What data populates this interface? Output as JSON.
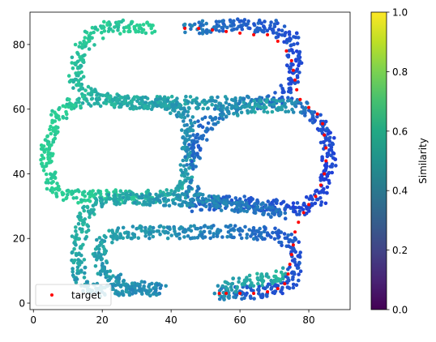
{
  "chart_data": {
    "type": "scatter",
    "xlim": [
      -1,
      92
    ],
    "ylim": [
      -2,
      90
    ],
    "x_ticks": [
      "0",
      "20",
      "40",
      "60",
      "80"
    ],
    "y_ticks": [
      "0",
      "20",
      "40",
      "60",
      "80"
    ],
    "grid": false,
    "legend": {
      "position": "lower-left",
      "entries": [
        "target"
      ]
    },
    "colorbar": {
      "label": "Similarity",
      "range": [
        0.0,
        1.0
      ],
      "ticks": [
        "0.0",
        "0.2",
        "0.4",
        "0.6",
        "0.8",
        "1.0"
      ],
      "colormap": "viridis"
    },
    "colors": {
      "target": "#ff0000",
      "point_high": "#2ad193",
      "point_low": "#1f3fd8"
    },
    "series": [
      {
        "name": "target",
        "marker": "red-dot",
        "x": [
          44,
          48,
          52,
          56,
          60,
          64,
          68,
          71,
          73.5,
          75,
          75.5,
          76,
          76.5,
          77.5,
          80,
          82.5,
          84,
          84.5,
          85,
          85,
          84.5,
          83.5,
          82,
          80,
          78.5,
          77,
          76,
          75.5,
          75,
          74.5,
          74,
          73,
          71,
          68,
          64,
          60,
          56,
          54
        ],
        "y": [
          85,
          85,
          84.5,
          84,
          83.5,
          83,
          83,
          81,
          78,
          75,
          72,
          69,
          66,
          63,
          60.5,
          58.5,
          55.5,
          52,
          48,
          44,
          40,
          36.5,
          33,
          30.5,
          28,
          25,
          22,
          18,
          15,
          12,
          9,
          6,
          4.5,
          3.5,
          3,
          3,
          3,
          3
        ]
      }
    ],
    "paths": [
      {
        "name": "top-loop",
        "points": [
          [
            35,
            85
          ],
          [
            28,
            85.5
          ],
          [
            20,
            85
          ],
          [
            16,
            82
          ],
          [
            13,
            77
          ],
          [
            12,
            71
          ],
          [
            14,
            66
          ],
          [
            20,
            63
          ],
          [
            30,
            62
          ],
          [
            45,
            62
          ],
          [
            58,
            62
          ],
          [
            68,
            62
          ],
          [
            73,
            64
          ],
          [
            75,
            70
          ],
          [
            76,
            76
          ],
          [
            75,
            82
          ],
          [
            70,
            85.5
          ],
          [
            60,
            86
          ],
          [
            50,
            85.5
          ],
          [
            44,
            85
          ]
        ],
        "similarity": [
          0.75,
          0.72,
          0.7,
          0.68,
          0.68,
          0.66,
          0.64,
          0.6,
          0.58,
          0.55,
          0.45,
          0.32,
          0.2,
          0.15,
          0.15,
          0.18,
          0.22,
          0.25,
          0.3,
          0.4
        ]
      },
      {
        "name": "left-loop",
        "points": [
          [
            16,
            63
          ],
          [
            10,
            61
          ],
          [
            6,
            56
          ],
          [
            4,
            49
          ],
          [
            4,
            42
          ],
          [
            6,
            36
          ],
          [
            12,
            33
          ],
          [
            22,
            33
          ],
          [
            32,
            33
          ],
          [
            40,
            33
          ],
          [
            44,
            36
          ],
          [
            45,
            43
          ],
          [
            45,
            50
          ],
          [
            45,
            56
          ],
          [
            43,
            60
          ],
          [
            38,
            62
          ],
          [
            28,
            62
          ],
          [
            20,
            63
          ]
        ],
        "similarity": [
          0.62,
          0.7,
          0.75,
          0.75,
          0.75,
          0.74,
          0.72,
          0.7,
          0.66,
          0.6,
          0.55,
          0.5,
          0.45,
          0.45,
          0.48,
          0.52,
          0.58,
          0.62
        ]
      },
      {
        "name": "right-loop",
        "points": [
          [
            46,
            37
          ],
          [
            47,
            30
          ],
          [
            52,
            31
          ],
          [
            60,
            31
          ],
          [
            70,
            30
          ],
          [
            78,
            29
          ],
          [
            83,
            32
          ],
          [
            85,
            38
          ],
          [
            86,
            45
          ],
          [
            85,
            52
          ],
          [
            83,
            57
          ],
          [
            78,
            61
          ],
          [
            72,
            61
          ],
          [
            64,
            61
          ],
          [
            55,
            59
          ],
          [
            50,
            55
          ],
          [
            47,
            49
          ],
          [
            46,
            43
          ]
        ],
        "similarity": [
          0.4,
          0.3,
          0.24,
          0.22,
          0.2,
          0.15,
          0.12,
          0.1,
          0.12,
          0.15,
          0.2,
          0.35,
          0.5,
          0.55,
          0.42,
          0.3,
          0.25,
          0.32
        ]
      },
      {
        "name": "bottom-loop",
        "points": [
          [
            73,
            28
          ],
          [
            60,
            30
          ],
          [
            48,
            32
          ],
          [
            35,
            32
          ],
          [
            22,
            32
          ],
          [
            15,
            28
          ],
          [
            13,
            20
          ],
          [
            13,
            12
          ],
          [
            14,
            6
          ],
          [
            18,
            4
          ],
          [
            27,
            4
          ],
          [
            37,
            4
          ],
          [
            28,
            5
          ],
          [
            20,
            10
          ],
          [
            19,
            16
          ],
          [
            22,
            21
          ],
          [
            30,
            22
          ],
          [
            45,
            22
          ],
          [
            60,
            22
          ],
          [
            72,
            21
          ],
          [
            76,
            17
          ],
          [
            76,
            12
          ],
          [
            75,
            7
          ],
          [
            70,
            4
          ],
          [
            60,
            3
          ],
          [
            54,
            3
          ],
          [
            58,
            6
          ],
          [
            66,
            7
          ],
          [
            73,
            9
          ]
        ],
        "similarity": [
          0.3,
          0.38,
          0.45,
          0.5,
          0.55,
          0.6,
          0.6,
          0.55,
          0.52,
          0.5,
          0.45,
          0.42,
          0.46,
          0.5,
          0.55,
          0.55,
          0.5,
          0.42,
          0.35,
          0.25,
          0.2,
          0.2,
          0.18,
          0.18,
          0.25,
          0.45,
          0.55,
          0.58,
          0.6
        ]
      }
    ]
  }
}
